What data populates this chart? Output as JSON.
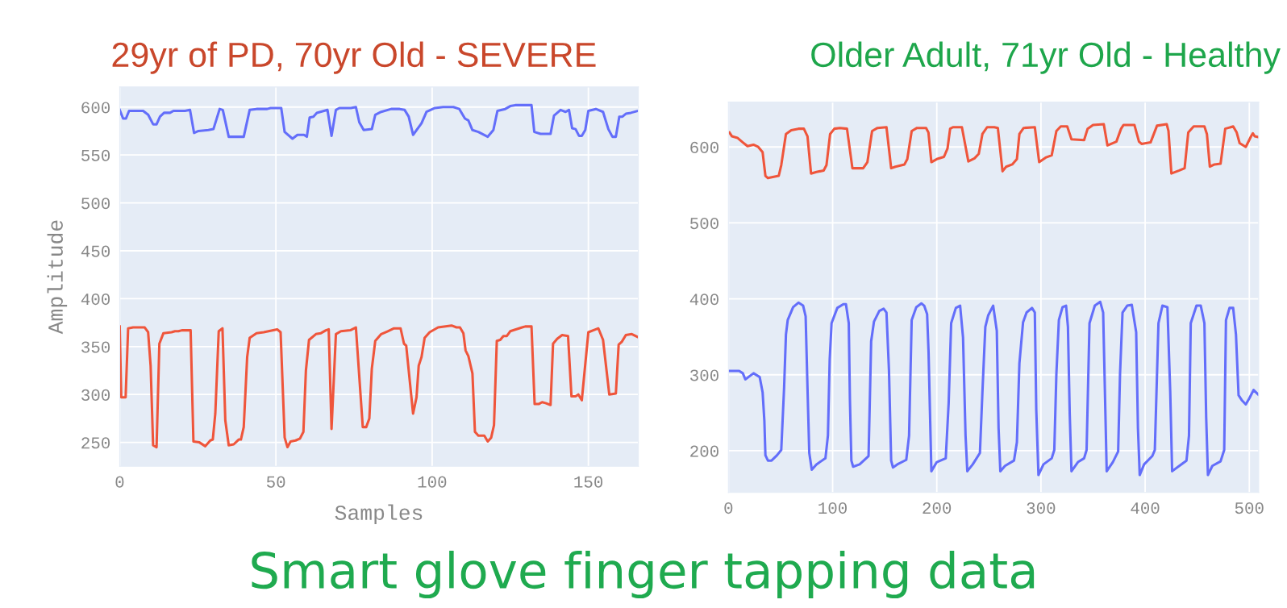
{
  "chart_data": [
    {
      "type": "line",
      "title": "29yr of PD, 70yr Old - SEVERE",
      "xlabel": "Samples",
      "ylabel": "Amplitude",
      "xlim": [
        0,
        166
      ],
      "ylim": [
        225,
        621
      ],
      "xticks": [
        0,
        50,
        100,
        150
      ],
      "yticks": [
        250,
        300,
        350,
        400,
        450,
        500,
        550,
        600
      ],
      "grid": true,
      "annotations": [
        "Smart glove finger tapping data"
      ],
      "series": [
        {
          "color": "#636efa",
          "x": [
            0,
            1.1,
            2,
            3,
            7.5,
            9.1,
            10.7,
            11.8,
            12.9,
            14.2,
            16.1,
            17.2,
            20.9,
            22.5,
            23.8,
            25.2,
            28.4,
            30,
            32,
            33,
            34.9,
            39.7,
            41.6,
            43.8,
            47.2,
            48.3,
            51.7,
            52.8,
            55.3,
            56.9,
            59,
            59.9,
            60.8,
            62,
            63.1,
            66.5,
            67.8,
            69.2,
            70.3,
            74,
            75.6,
            76.7,
            78.1,
            80.7,
            81.8,
            83.7,
            86.9,
            89.6,
            91.2,
            92.5,
            93.9,
            96.6,
            98.2,
            100.9,
            103.5,
            106.8,
            108.7,
            110.5,
            111.6,
            112.9,
            114.8,
            117.8,
            119.6,
            120.9,
            123.4,
            125,
            126.6,
            131.8,
            132.7,
            134.7,
            137.9,
            139,
            141.1,
            142.7,
            143.8,
            144.8,
            145.9,
            147,
            147.9,
            149,
            150,
            152.4,
            154.7,
            156.4,
            157.7,
            158.8,
            159.9,
            160.9,
            162,
            163.6,
            165.8
          ],
          "values": [
            597,
            588,
            588,
            596,
            596,
            592,
            582,
            582,
            590,
            594,
            594,
            596,
            596,
            597,
            573,
            575,
            576,
            577,
            598,
            597,
            569,
            569,
            597,
            598,
            598,
            599,
            599,
            574,
            567,
            571,
            571,
            569,
            589,
            590,
            594,
            597,
            570,
            597,
            599,
            599,
            600,
            584,
            576,
            577,
            592,
            595,
            598,
            598,
            597,
            590,
            571,
            583,
            595,
            599,
            600,
            600,
            598,
            588,
            586,
            576,
            574,
            569,
            576,
            596,
            598,
            601,
            602,
            602,
            574,
            572,
            572,
            591,
            597,
            595,
            597,
            578,
            577,
            570,
            570,
            576,
            596,
            598,
            595,
            577,
            569,
            569,
            590,
            590,
            593,
            594,
            596
          ]
        },
        {
          "color": "#ef553b",
          "x": [
            0,
            0.5,
            1.9,
            2.7,
            4.3,
            8,
            9.1,
            9.9,
            10.7,
            11.8,
            12.7,
            14,
            16.6,
            17.7,
            18.8,
            19.9,
            22.7,
            23.6,
            25.5,
            27.4,
            29,
            29.8,
            30.6,
            31.7,
            32.9,
            33.8,
            34.9,
            36.5,
            38.1,
            38.8,
            39.7,
            40.8,
            41.6,
            43.8,
            46.1,
            50.4,
            51.5,
            52.8,
            53.7,
            54.7,
            56.3,
            57.7,
            58.8,
            59.6,
            60.6,
            62.8,
            64.4,
            66,
            66.9,
            67.8,
            69.2,
            70.8,
            73.8,
            75.6,
            77.8,
            78.9,
            79.9,
            80.7,
            81.8,
            83.7,
            85.8,
            87.8,
            89.9,
            91,
            91.7,
            93.9,
            95,
            95.7,
            96.6,
            97.6,
            99.2,
            101.9,
            106.2,
            107.8,
            108.9,
            110,
            110.7,
            111.6,
            112.9,
            113.7,
            114.8,
            116.7,
            117.8,
            118.9,
            119.8,
            120.7,
            121.8,
            122.8,
            123.9,
            125,
            128.8,
            129.8,
            131.8,
            132.8,
            134.1,
            135.2,
            136.3,
            137.9,
            138.7,
            140,
            141.6,
            143.5,
            144.6,
            145.9,
            146.8,
            147.9,
            150,
            152.4,
            153.2,
            154.7,
            156.7,
            158.8,
            159.7,
            160.7,
            162,
            163.9,
            165.8
          ],
          "values": [
            371,
            297,
            297,
            369,
            370,
            370,
            365,
            330,
            247,
            245,
            353,
            364,
            365,
            366,
            366,
            367,
            367,
            251,
            250,
            246,
            252,
            253,
            280,
            366,
            369,
            273,
            247,
            248,
            253,
            253,
            266,
            339,
            359,
            364,
            365,
            368,
            365,
            255,
            245,
            251,
            252,
            254,
            261,
            325,
            357,
            363,
            364,
            367,
            368,
            264,
            363,
            366,
            367,
            370,
            266,
            266,
            275,
            327,
            356,
            363,
            366,
            369,
            369,
            353,
            351,
            280,
            297,
            330,
            339,
            359,
            365,
            370,
            372,
            370,
            370,
            364,
            346,
            340,
            322,
            261,
            257,
            257,
            251,
            255,
            268,
            356,
            357,
            361,
            361,
            366,
            370,
            371,
            371,
            290,
            290,
            292,
            291,
            289,
            353,
            358,
            362,
            361,
            298,
            298,
            300,
            294,
            365,
            368,
            369,
            357,
            300,
            301,
            352,
            355,
            362,
            363,
            360
          ]
        }
      ]
    },
    {
      "type": "line",
      "title": "Older Adult, 71yr Old - Healthy",
      "xlim": [
        0,
        509
      ],
      "ylim": [
        145,
        659
      ],
      "xticks": [
        0,
        100,
        200,
        300,
        400,
        500
      ],
      "yticks": [
        200,
        300,
        400,
        500,
        600
      ],
      "grid": true,
      "series": [
        {
          "color": "#ef553b",
          "x": [
            1,
            3.4,
            8.6,
            13.8,
            18.3,
            24,
            28.6,
            32.8,
            35.5,
            37.9,
            48.3,
            50.7,
            55.2,
            60.3,
            67.2,
            72.4,
            75.9,
            79.3,
            84.5,
            91.4,
            94.1,
            97.6,
            101.7,
            106.9,
            113.8,
            119,
            129.3,
            133.4,
            137.9,
            143.1,
            151.7,
            156.2,
            160.3,
            169,
            171.7,
            175.9,
            181,
            189.7,
            192,
            194.8,
            200,
            206.9,
            210.3,
            212.8,
            215.5,
            224.1,
            230.3,
            236.2,
            240.3,
            243.8,
            248.3,
            255.2,
            258.6,
            263.1,
            266.6,
            272.4,
            276.9,
            279.3,
            283.4,
            294.1,
            298.3,
            304.5,
            310.3,
            314.8,
            319,
            325.2,
            329.3,
            341.4,
            344.8,
            350,
            360.3,
            363.8,
            372.4,
            376.9,
            379.3,
            389.7,
            394.1,
            396.6,
            405.2,
            411.4,
            420.7,
            422.4,
            425.2,
            432.8,
            437.9,
            441.4,
            446.6,
            456.9,
            459.3,
            462.1,
            466.6,
            472.4,
            476.9,
            484.5,
            487.9,
            490.7,
            496.6,
            501.7,
            503.4,
            505.2,
            508.6
          ],
          "values": [
            619,
            614,
            612,
            606,
            601,
            603,
            600,
            593,
            562,
            559,
            562,
            576,
            617,
            622,
            624,
            624,
            614,
            565,
            567,
            569,
            576,
            617,
            624,
            625,
            624,
            572,
            572,
            580,
            621,
            625,
            626,
            572,
            574,
            577,
            584,
            621,
            625,
            625,
            619,
            580,
            584,
            587,
            598,
            624,
            626,
            626,
            581,
            585,
            591,
            617,
            626,
            626,
            625,
            568,
            574,
            577,
            584,
            617,
            625,
            626,
            580,
            586,
            589,
            621,
            627,
            627,
            610,
            609,
            624,
            629,
            630,
            602,
            607,
            624,
            629,
            629,
            607,
            604,
            606,
            628,
            630,
            621,
            565,
            569,
            572,
            619,
            627,
            627,
            617,
            574,
            577,
            578,
            624,
            627,
            619,
            605,
            600,
            614,
            618,
            614,
            613
          ]
        },
        {
          "color": "#636efa",
          "x": [
            0,
            10.3,
            13.8,
            16.2,
            24.1,
            30,
            32.8,
            34.5,
            35.5,
            37.9,
            41.4,
            46.6,
            50.7,
            53.4,
            55.2,
            56.9,
            62.1,
            67.2,
            71.7,
            74.1,
            75.9,
            77.6,
            80,
            84.5,
            93.1,
            95.5,
            97.2,
            99,
            104.5,
            110.3,
            112.8,
            115.5,
            116.6,
            118,
            119.7,
            125.9,
            134.5,
            137,
            139.7,
            144.8,
            149,
            151.7,
            154.1,
            156.2,
            157.9,
            162.1,
            170.7,
            173.4,
            175.9,
            180.3,
            185.2,
            187.9,
            190.7,
            192.1,
            194.8,
            200,
            208.6,
            211.4,
            213.8,
            218.3,
            222.4,
            225.2,
            227.6,
            229.3,
            234.5,
            241.4,
            243.8,
            246.6,
            249.3,
            254.1,
            257.6,
            259.3,
            261,
            265.5,
            274.1,
            276.9,
            279.3,
            282.8,
            286.2,
            291.4,
            294.1,
            295.5,
            297.6,
            302.4,
            310.3,
            312.8,
            314.8,
            317.2,
            320.7,
            324.1,
            325.9,
            327.6,
            329.3,
            335.5,
            341.4,
            343.8,
            346.6,
            351.7,
            356.9,
            359.7,
            363.1,
            369,
            374.1,
            375.9,
            378.3,
            382.8,
            387.2,
            391.4,
            393.1,
            394.8,
            399,
            406.9,
            409.3,
            412.8,
            416.6,
            421.4,
            424.1,
            425.9,
            432.8,
            439.7,
            442.1,
            443.8,
            449.3,
            453.4,
            456.9,
            458.6,
            460.3,
            464.5,
            472.4,
            475.9,
            477.6,
            481,
            484.5,
            487.2,
            489.7,
            493.1,
            496.6,
            500,
            504.1,
            508.6
          ],
          "values": [
            305,
            305,
            302,
            294,
            302,
            297,
            277,
            239,
            194,
            187,
            187,
            194,
            201,
            282,
            353,
            372,
            389,
            395,
            391,
            377,
            282,
            197,
            175,
            182,
            190,
            220,
            320,
            368,
            388,
            393,
            393,
            368,
            268,
            187,
            179,
            182,
            193,
            344,
            370,
            384,
            387,
            382,
            306,
            187,
            178,
            182,
            188,
            220,
            372,
            389,
            394,
            391,
            380,
            330,
            173,
            185,
            190,
            263,
            368,
            388,
            391,
            349,
            220,
            173,
            182,
            197,
            277,
            363,
            378,
            391,
            358,
            230,
            173,
            180,
            187,
            211,
            315,
            369,
            382,
            388,
            382,
            254,
            168,
            182,
            190,
            201,
            301,
            372,
            389,
            391,
            363,
            249,
            173,
            185,
            190,
            201,
            368,
            391,
            396,
            382,
            173,
            185,
            199,
            301,
            382,
            391,
            392,
            356,
            230,
            168,
            182,
            193,
            201,
            368,
            391,
            389,
            277,
            173,
            180,
            187,
            220,
            368,
            391,
            391,
            368,
            244,
            168,
            180,
            186,
            201,
            372,
            388,
            388,
            353,
            273,
            266,
            261,
            269,
            280,
            274
          ]
        }
      ]
    }
  ]
}
